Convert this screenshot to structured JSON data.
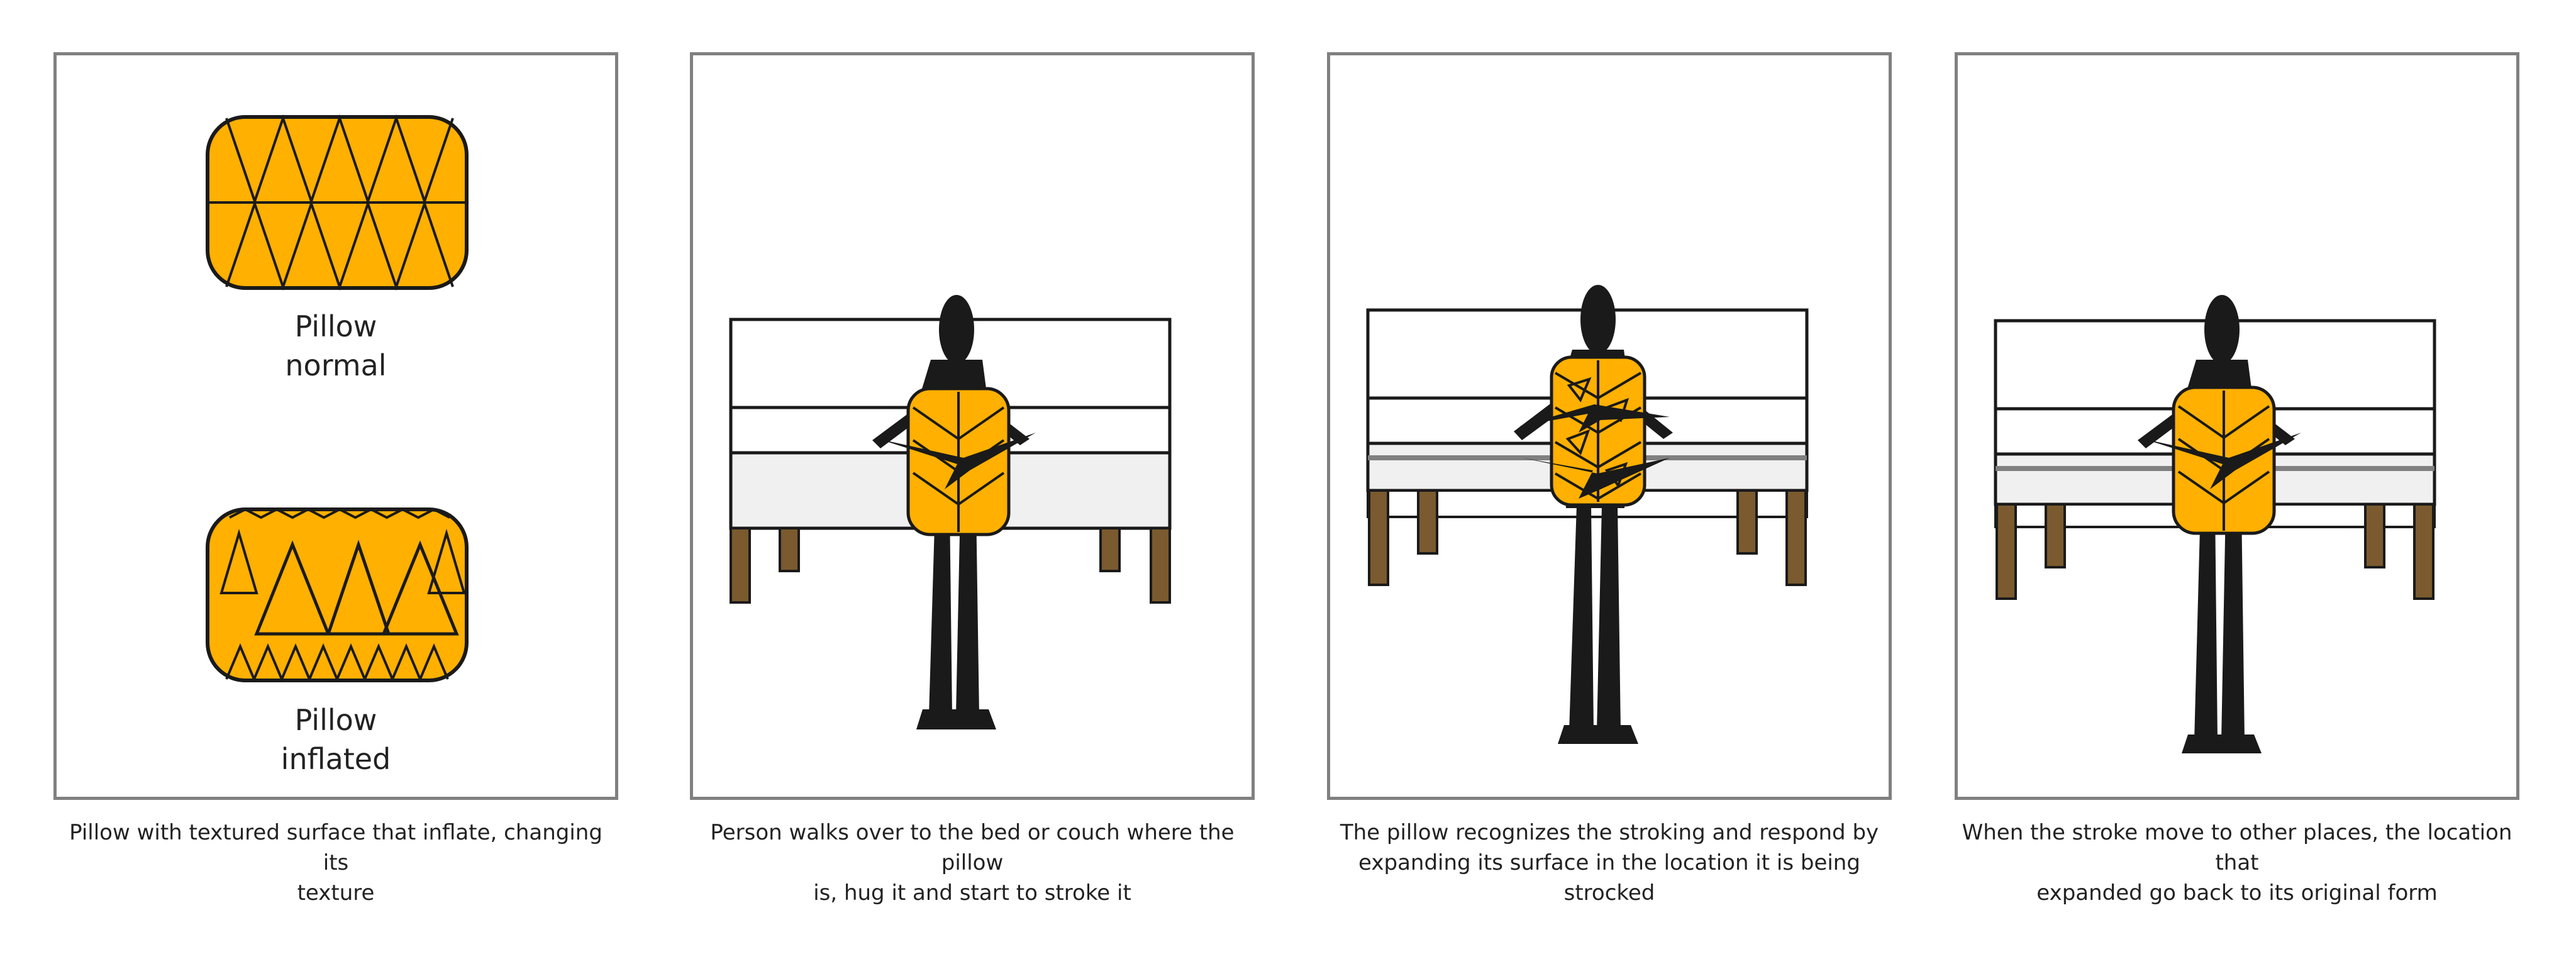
{
  "panels": [
    {
      "labels": {
        "normal_line1": "Pillow",
        "normal_line2": "normal",
        "inflated_line1": "Pillow",
        "inflated_line2": "inflated"
      },
      "caption_line1": "Pillow with textured surface that inflate, changing its",
      "caption_line2": "texture"
    },
    {
      "caption_line1": "Person walks over to the bed or couch where the pillow",
      "caption_line2": "is, hug it and start to stroke it"
    },
    {
      "caption_line1": "The pillow recognizes the stroking and respond by",
      "caption_line2": "expanding its surface in the location it is being strocked"
    },
    {
      "caption_line1": "When the stroke move to other places, the location that",
      "caption_line2": "expanded go back to its original form"
    }
  ],
  "colors": {
    "pillow": "#FFB000",
    "figure": "#1A1A1A",
    "bed_legs": "#7A5A2E",
    "frame": "#808080",
    "mattress": "#F0F0F0"
  }
}
